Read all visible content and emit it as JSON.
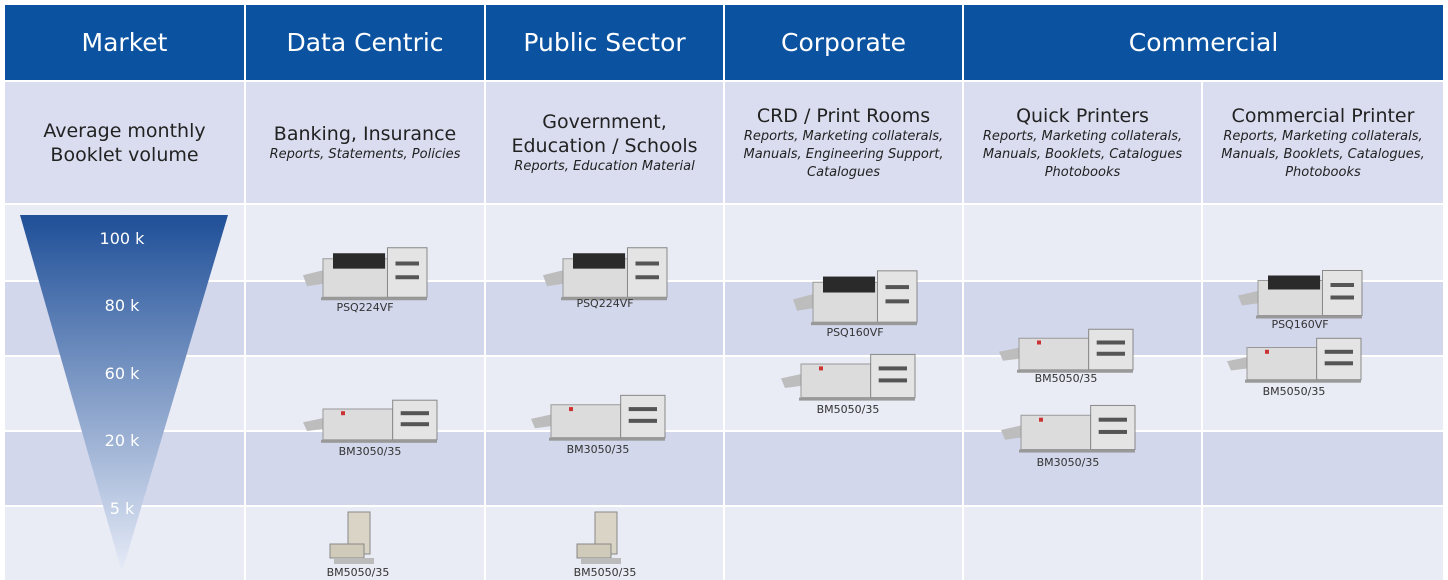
{
  "header": {
    "columns": [
      "Market",
      "Data Centric",
      "Public Sector",
      "Corporate",
      "Commercial"
    ]
  },
  "market": {
    "title": "Average monthly Booklet volume",
    "levels": [
      "100 k",
      "80 k",
      "60 k",
      "20 k",
      "5 k"
    ]
  },
  "segments": [
    {
      "title": "Banking, Insurance",
      "subtitle": "Reports, Statements, Policies"
    },
    {
      "title": "Government, Education / Schools",
      "subtitle": "Reports, Education Material"
    },
    {
      "title": "CRD / Print Rooms",
      "subtitle": "Reports, Marketing collaterals, Manuals, Engineering Support, Catalogues"
    },
    {
      "title": "Quick Printers",
      "subtitle": "Reports, Marketing collaterals, Manuals, Booklets, Catalogues Photobooks"
    },
    {
      "title": "Commercial Printer",
      "subtitle": "Reports, Marketing collaterals, Manuals, Booklets, Catalogues, Photobooks"
    }
  ],
  "products": [
    {
      "label": "PSQ224VF"
    },
    {
      "label": "BM3050/35"
    },
    {
      "label": "BM5050/35"
    },
    {
      "label": "PSQ224VF"
    },
    {
      "label": "BM3050/35"
    },
    {
      "label": "BM5050/35"
    },
    {
      "label": "PSQ160VF"
    },
    {
      "label": "BM5050/35"
    },
    {
      "label": "BM5050/35"
    },
    {
      "label": "BM3050/35"
    },
    {
      "label": "PSQ160VF"
    },
    {
      "label": "BM5050/35"
    }
  ]
}
